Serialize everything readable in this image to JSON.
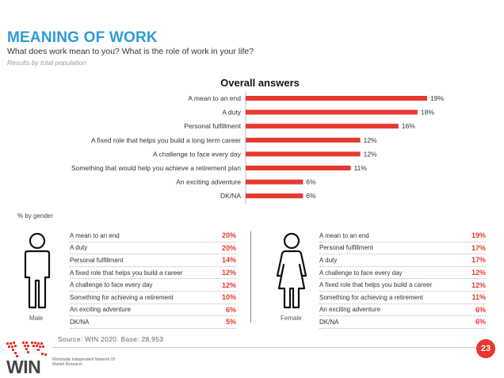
{
  "header": {
    "title": "MEANING OF WORK",
    "subtitle": "What does work mean to you? What is the role of work in your life?",
    "note": "Results by total population"
  },
  "chart_data": {
    "type": "bar",
    "orientation": "horizontal",
    "title": "Overall answers",
    "categories": [
      "A mean to an end",
      "A duty",
      "Personal fulfillment",
      "A fixed role that helps you build a long term career",
      "A challenge to face every day",
      "Something that would help you achieve a retirement plan",
      "An exciting adventure",
      "DK/NA"
    ],
    "values": [
      19,
      18,
      16,
      12,
      12,
      11,
      6,
      6
    ],
    "value_labels": [
      "19%",
      "18%",
      "16%",
      "12%",
      "12%",
      "11%",
      "6%",
      "6%"
    ],
    "bar_color": "#e8382f",
    "xlim": [
      0,
      20
    ]
  },
  "gender": {
    "label": "% by gender",
    "male": {
      "caption": "Male",
      "rows": [
        {
          "label": "A mean to an end",
          "value": "20%"
        },
        {
          "label": "A duty",
          "value": "20%"
        },
        {
          "label": "Personal fulfillment",
          "value": "14%"
        },
        {
          "label": "A fixed role that helps you build a career",
          "value": "12%"
        },
        {
          "label": "A challenge to face every day",
          "value": "12%"
        },
        {
          "label": "Something for achieving a retirement",
          "value": "10%"
        },
        {
          "label": "An exciting adventure",
          "value": "6%"
        },
        {
          "label": "DK/NA",
          "value": "5%"
        }
      ]
    },
    "female": {
      "caption": "Female",
      "rows": [
        {
          "label": "A mean to an end",
          "value": "19%"
        },
        {
          "label": "Personal fulfillment",
          "value": "17%"
        },
        {
          "label": "A duty",
          "value": "17%"
        },
        {
          "label": "A challenge to face every day",
          "value": "12%"
        },
        {
          "label": "A fixed role that helps you build a career",
          "value": "12%"
        },
        {
          "label": "Something for achieving a retirement",
          "value": "11%"
        },
        {
          "label": "An exciting adventure",
          "value": "6%"
        },
        {
          "label": "DK/NA",
          "value": "6%"
        }
      ]
    }
  },
  "footer": {
    "source": "Source: WIN 2020. Base: 28,953",
    "page_number": "23",
    "logo_text": "WIN",
    "logo_subtext": "Worldwide Independent Network Of Market Research"
  },
  "colors": {
    "title": "#2e9bd6",
    "accent": "#e8382f"
  }
}
